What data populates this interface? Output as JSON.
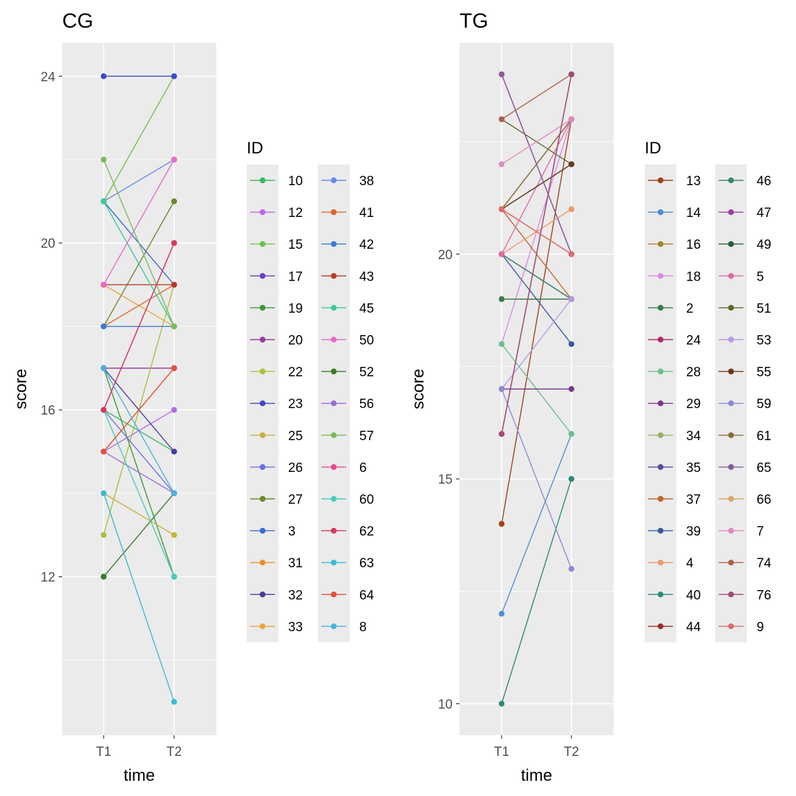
{
  "chart_data": [
    {
      "type": "line",
      "title": "CG",
      "xlabel": "time",
      "ylabel": "score",
      "x": [
        "T1",
        "T2"
      ],
      "ylim": [
        8.2,
        24.8
      ],
      "yticks": [
        12,
        16,
        20,
        24
      ],
      "grid": true,
      "legend": {
        "title": "ID",
        "placement": "right"
      },
      "series": [
        {
          "name": "10",
          "color": "#3ab960",
          "values": [
            16,
            15
          ]
        },
        {
          "name": "12",
          "color": "#b66ae6",
          "values": [
            15,
            16
          ]
        },
        {
          "name": "15",
          "color": "#6cc24a",
          "values": [
            21,
            24
          ]
        },
        {
          "name": "17",
          "color": "#6a3fc8",
          "values": [
            17,
            17
          ]
        },
        {
          "name": "19",
          "color": "#3a9a3a",
          "values": [
            17,
            12
          ]
        },
        {
          "name": "20",
          "color": "#9a3a9a",
          "values": [
            17,
            17
          ]
        },
        {
          "name": "22",
          "color": "#a9c23a",
          "values": [
            13,
            19
          ]
        },
        {
          "name": "23",
          "color": "#3a4ac8",
          "values": [
            24,
            24
          ]
        },
        {
          "name": "25",
          "color": "#c9b23a",
          "values": [
            14,
            13
          ]
        },
        {
          "name": "26",
          "color": "#6a70e6",
          "values": [
            16,
            14
          ]
        },
        {
          "name": "27",
          "color": "#6a8a2a",
          "values": [
            18,
            21
          ]
        },
        {
          "name": "3",
          "color": "#3a6ad6",
          "values": [
            21,
            19
          ]
        },
        {
          "name": "31",
          "color": "#e6902a",
          "values": [
            15,
            17
          ]
        },
        {
          "name": "32",
          "color": "#4a3aa0",
          "values": [
            17,
            15
          ]
        },
        {
          "name": "33",
          "color": "#e6a83a",
          "values": [
            19,
            18
          ]
        },
        {
          "name": "38",
          "color": "#6a8ae6",
          "values": [
            21,
            22
          ]
        },
        {
          "name": "41",
          "color": "#d9662a",
          "values": [
            18,
            19
          ]
        },
        {
          "name": "42",
          "color": "#3a7ad6",
          "values": [
            18,
            18
          ]
        },
        {
          "name": "43",
          "color": "#b83a2a",
          "values": [
            19,
            19
          ]
        },
        {
          "name": "45",
          "color": "#3ac99a",
          "values": [
            21,
            18
          ]
        },
        {
          "name": "50",
          "color": "#e66ac8",
          "values": [
            19,
            22
          ]
        },
        {
          "name": "52",
          "color": "#3a7a2a",
          "values": [
            12,
            14
          ]
        },
        {
          "name": "56",
          "color": "#9a6ad6",
          "values": [
            15,
            14
          ]
        },
        {
          "name": "57",
          "color": "#7aba5a",
          "values": [
            22,
            18
          ]
        },
        {
          "name": "6",
          "color": "#e64a8a",
          "values": [
            16,
            20
          ]
        },
        {
          "name": "60",
          "color": "#4acaba",
          "values": [
            16,
            12
          ]
        },
        {
          "name": "62",
          "color": "#d63a5a",
          "values": [
            16,
            20
          ]
        },
        {
          "name": "63",
          "color": "#3ab9d6",
          "values": [
            14,
            9
          ]
        },
        {
          "name": "64",
          "color": "#e6503a",
          "values": [
            15,
            17
          ]
        },
        {
          "name": "8",
          "color": "#4ab2e0",
          "values": [
            17,
            14
          ]
        }
      ]
    },
    {
      "type": "line",
      "title": "TG",
      "xlabel": "time",
      "ylabel": "score",
      "x": [
        "T1",
        "T2"
      ],
      "ylim": [
        9.3,
        24.7
      ],
      "yticks": [
        10,
        15,
        20
      ],
      "grid": true,
      "legend": {
        "title": "ID",
        "placement": "right"
      },
      "series": [
        {
          "name": "13",
          "color": "#a0401a",
          "values": [
            14,
            23
          ]
        },
        {
          "name": "14",
          "color": "#4a90d6",
          "values": [
            12,
            16
          ]
        },
        {
          "name": "16",
          "color": "#a0862a",
          "values": [
            21,
            23
          ]
        },
        {
          "name": "18",
          "color": "#d98ae6",
          "values": [
            18,
            23
          ]
        },
        {
          "name": "2",
          "color": "#3a7a4a",
          "values": [
            19,
            19
          ]
        },
        {
          "name": "24",
          "color": "#b02a6a",
          "values": [
            16,
            24
          ]
        },
        {
          "name": "28",
          "color": "#6ac08a",
          "values": [
            18,
            16
          ]
        },
        {
          "name": "29",
          "color": "#7a3a8a",
          "values": [
            17,
            17
          ]
        },
        {
          "name": "34",
          "color": "#9ab06a",
          "values": [
            20,
            19
          ]
        },
        {
          "name": "35",
          "color": "#5a4aa0",
          "values": [
            20,
            19
          ]
        },
        {
          "name": "37",
          "color": "#c0662a",
          "values": [
            21,
            19
          ]
        },
        {
          "name": "39",
          "color": "#3a5aa0",
          "values": [
            20,
            18
          ]
        },
        {
          "name": "4",
          "color": "#f0966a",
          "values": [
            20,
            21
          ]
        },
        {
          "name": "40",
          "color": "#2a8a7a",
          "values": [
            10,
            15
          ]
        },
        {
          "name": "44",
          "color": "#a02a2a",
          "values": [
            21,
            20
          ]
        },
        {
          "name": "46",
          "color": "#3a8a6a",
          "values": [
            20,
            19
          ]
        },
        {
          "name": "47",
          "color": "#a0409a",
          "values": [
            24,
            20
          ]
        },
        {
          "name": "49",
          "color": "#2a5a3a",
          "values": [
            21,
            22
          ]
        },
        {
          "name": "5",
          "color": "#e06aa0",
          "values": [
            20,
            23
          ]
        },
        {
          "name": "51",
          "color": "#5a6a2a",
          "values": [
            23,
            22
          ]
        },
        {
          "name": "53",
          "color": "#b49ae6",
          "values": [
            17,
            19
          ]
        },
        {
          "name": "55",
          "color": "#6a3a1a",
          "values": [
            21,
            22
          ]
        },
        {
          "name": "59",
          "color": "#8a8ad6",
          "values": [
            17,
            13
          ]
        },
        {
          "name": "61",
          "color": "#8a6a3a",
          "values": [
            21,
            23
          ]
        },
        {
          "name": "65",
          "color": "#8a5a9a",
          "values": [
            24,
            20
          ]
        },
        {
          "name": "66",
          "color": "#d6aa6a",
          "values": [
            21,
            20
          ]
        },
        {
          "name": "7",
          "color": "#e08ac0",
          "values": [
            22,
            23
          ]
        },
        {
          "name": "74",
          "color": "#b0604a",
          "values": [
            23,
            24
          ]
        },
        {
          "name": "76",
          "color": "#a04a7a",
          "values": [
            16,
            24
          ]
        },
        {
          "name": "9",
          "color": "#e06a6a",
          "values": [
            21,
            20
          ]
        }
      ]
    }
  ]
}
